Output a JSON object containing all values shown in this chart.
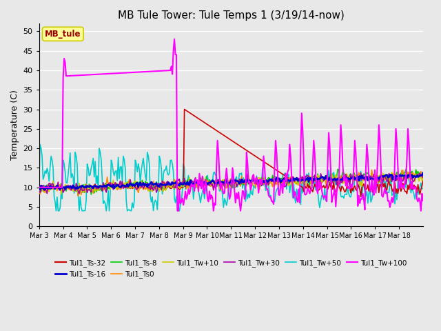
{
  "title": "MB Tule Tower: Tule Temps 1 (3/19/14-now)",
  "ylabel": "Temperature (C)",
  "ylim": [
    0,
    52
  ],
  "yticks": [
    0,
    5,
    10,
    15,
    20,
    25,
    30,
    35,
    40,
    45,
    50
  ],
  "x_tick_labels": [
    "Mar 3",
    "Mar 4",
    "Mar 5",
    "Mar 6",
    "Mar 7",
    "Mar 8",
    "Mar 9",
    "Mar 10",
    "Mar 11",
    "Mar 12",
    "Mar 13",
    "Mar 14",
    "Mar 15",
    "Mar 16",
    "Mar 17",
    "Mar 18"
  ],
  "legend_label": "MB_tule",
  "legend_text_color": "#990000",
  "legend_box_color": "#FFFF99",
  "legend_edge_color": "#CCCC00",
  "series": {
    "Tul1_Ts-32": {
      "color": "#CC0000",
      "lw": 1.2
    },
    "Tul1_Ts-16": {
      "color": "#0000CC",
      "lw": 2.0
    },
    "Tul1_Ts-8": {
      "color": "#00CC00",
      "lw": 1.2
    },
    "Tul1_Ts0": {
      "color": "#FF8800",
      "lw": 1.2
    },
    "Tul1_Tw+10": {
      "color": "#CCCC00",
      "lw": 1.2
    },
    "Tul1_Tw+30": {
      "color": "#AA00AA",
      "lw": 1.2
    },
    "Tul1_Tw+50": {
      "color": "#00CCCC",
      "lw": 1.2
    },
    "Tul1_Tw+100": {
      "color": "#FF00FF",
      "lw": 1.5
    }
  },
  "background_color": "#E8E8E8",
  "title_fontsize": 11
}
